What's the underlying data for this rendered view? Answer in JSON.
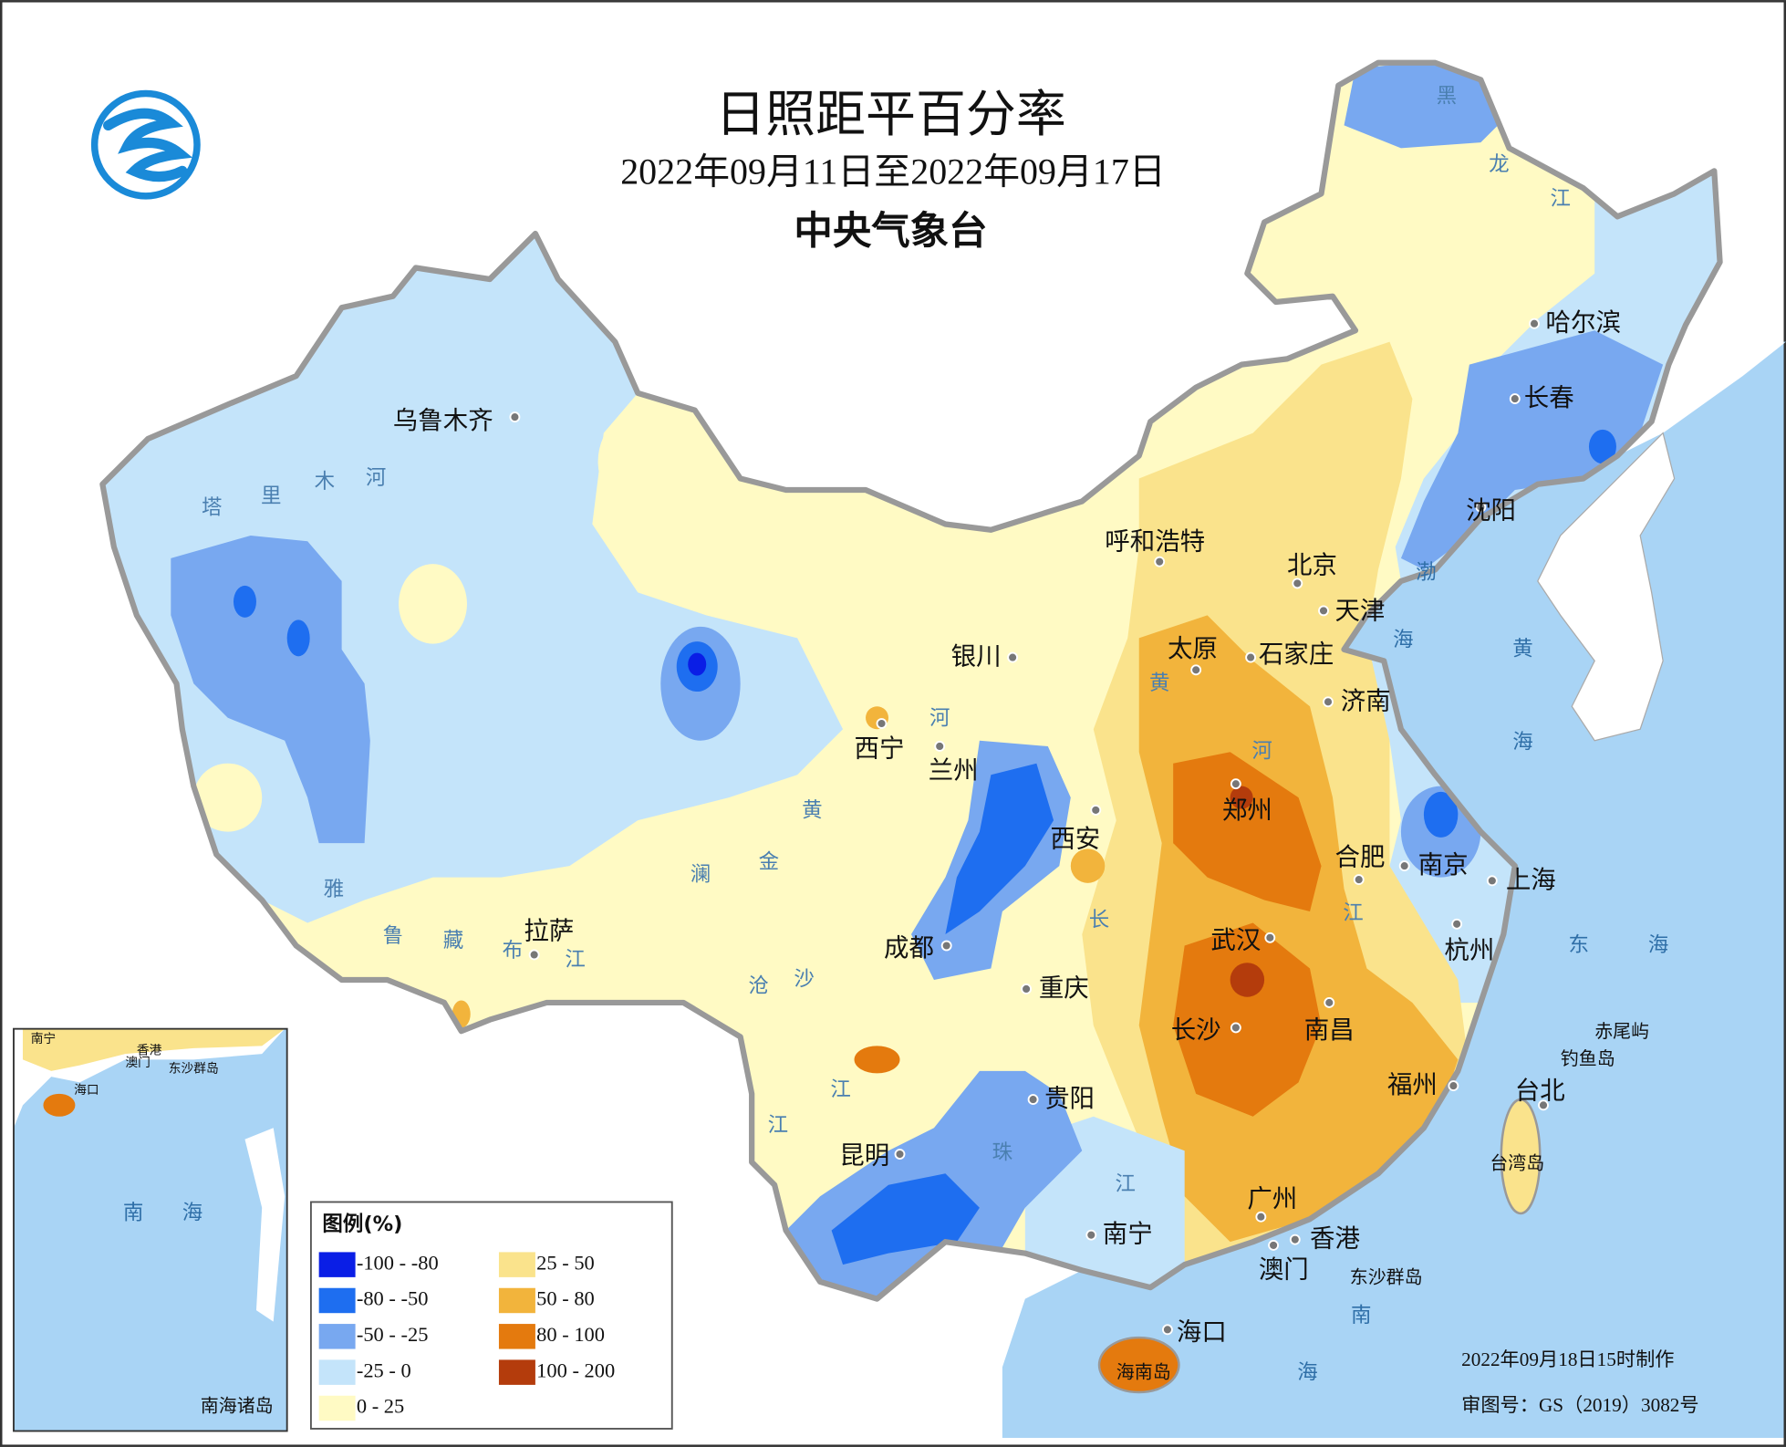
{
  "header": {
    "title": "日照距平百分率",
    "subtitle": "2022年09月11日至2022年09月17日",
    "agency": "中央气象台"
  },
  "legend": {
    "title": "图例(%)",
    "items": [
      {
        "label": "-100 - -80",
        "color": "#0a1ee6"
      },
      {
        "label": "-80 - -50",
        "color": "#1e6ef0"
      },
      {
        "label": "-50 - -25",
        "color": "#78a8f0"
      },
      {
        "label": "-25 - 0",
        "color": "#c4e4fa"
      },
      {
        "label": "0 - 25",
        "color": "#fffac4"
      },
      {
        "label": "25 - 50",
        "color": "#fae38c"
      },
      {
        "label": "50 - 80",
        "color": "#f2b43c"
      },
      {
        "label": "80 - 100",
        "color": "#e47a0e"
      },
      {
        "label": "100 - 200",
        "color": "#b43c0c"
      }
    ]
  },
  "cities": [
    "乌鲁木齐",
    "呼和浩特",
    "北京",
    "天津",
    "银川",
    "太原",
    "石家庄",
    "济南",
    "西宁",
    "兰州",
    "郑州",
    "西安",
    "合肥",
    "南京",
    "上海",
    "拉萨",
    "成都",
    "武汉",
    "杭州",
    "重庆",
    "长沙",
    "南昌",
    "福州",
    "台北",
    "贵阳",
    "昆明",
    "广州",
    "南宁",
    "香港",
    "澳门",
    "海口",
    "哈尔滨",
    "长春",
    "沈阳"
  ],
  "places": [
    "台湾岛",
    "海南岛",
    "东沙群岛",
    "赤尾屿",
    "钓鱼岛"
  ],
  "rivers": [
    "塔",
    "里",
    "木",
    "河",
    "雅",
    "鲁",
    "藏",
    "布",
    "江",
    "黄",
    "河",
    "黄",
    "河",
    "金",
    "沙",
    "江",
    "澜",
    "沧",
    "江",
    "长",
    "江",
    "珠",
    "江",
    "黑",
    "龙",
    "江"
  ],
  "seas": [
    "渤",
    "海",
    "黄",
    "海",
    "东",
    "海",
    "南",
    "海"
  ],
  "inset": {
    "labels": [
      "南宁",
      "香港",
      "澳门",
      "东沙群岛",
      "海口",
      "南",
      "海"
    ],
    "title": "南海诸岛"
  },
  "footer": {
    "made": "2022年09月18日15时制作",
    "review": "审图号：GS（2019）3082号"
  }
}
